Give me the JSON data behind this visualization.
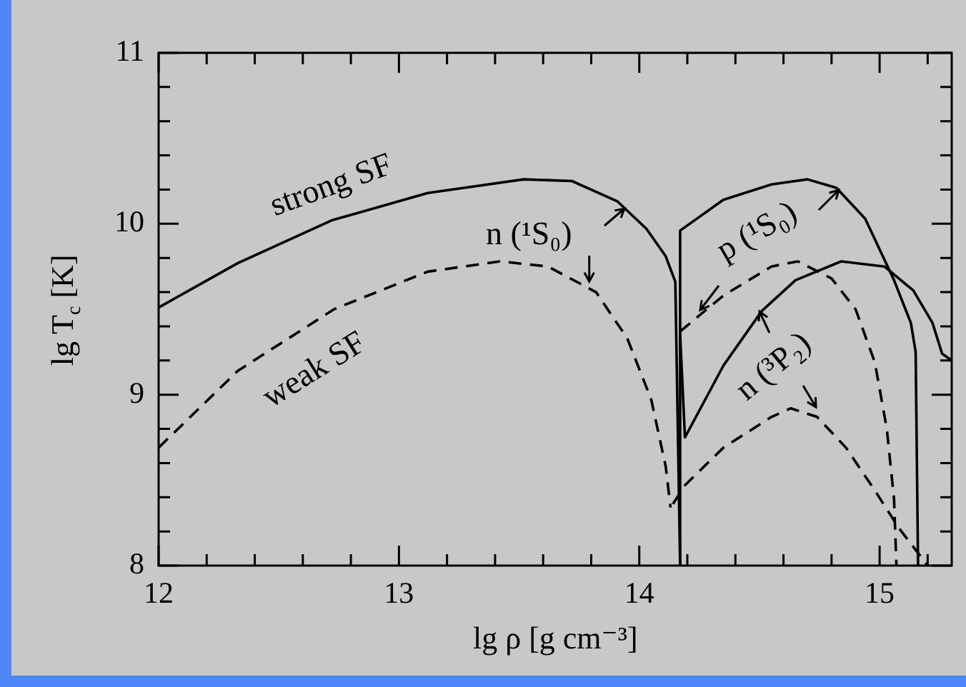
{
  "chart_data": {
    "type": "line",
    "xlabel": "lg ρ [g cm⁻³]",
    "ylabel": "lg T$_{c}$ [K]",
    "xlim": [
      12,
      15.3
    ],
    "ylim": [
      8,
      11
    ],
    "xticks": [
      12,
      {
        "value": 12.2,
        "label": null
      },
      {
        "value": 12.4,
        "label": null
      },
      {
        "value": 12.6,
        "label": null
      },
      {
        "value": 12.8,
        "label": null
      },
      13,
      {
        "value": 13.2,
        "label": null
      },
      {
        "value": 13.4,
        "label": null
      },
      {
        "value": 13.6,
        "label": null
      },
      {
        "value": 13.8,
        "label": null
      },
      14,
      {
        "value": 14.2,
        "label": null
      },
      {
        "value": 14.4,
        "label": null
      },
      {
        "value": 14.6,
        "label": null
      },
      {
        "value": 14.8,
        "label": null
      },
      15,
      {
        "value": 15.2,
        "label": null
      }
    ],
    "yticks": [
      8,
      {
        "value": 8.2,
        "label": null
      },
      {
        "value": 8.4,
        "label": null
      },
      {
        "value": 8.6,
        "label": null
      },
      {
        "value": 8.8,
        "label": null
      },
      9,
      {
        "value": 9.2,
        "label": null
      },
      {
        "value": 9.4,
        "label": null
      },
      {
        "value": 9.6,
        "label": null
      },
      {
        "value": 9.8,
        "label": null
      },
      10,
      {
        "value": 10.2,
        "label": null
      },
      {
        "value": 10.4,
        "label": null
      },
      {
        "value": 10.6,
        "label": null
      },
      {
        "value": 10.8,
        "label": null
      },
      11
    ],
    "grid": false,
    "legend": false,
    "marker": "none",
    "series": [
      {
        "color": "#000000",
        "line_style": "solid",
        "x": [
          12,
          12.33,
          12.72,
          13.12,
          13.52,
          13.72,
          13.91,
          14.03,
          14.11,
          14.15,
          14.17
        ],
        "values": [
          9.51,
          9.77,
          10.02,
          10.18,
          10.26,
          10.25,
          10.13,
          9.97,
          9.81,
          9.66,
          8
        ]
      },
      {
        "color": "#000000",
        "line_style": "dashed",
        "x": [
          12,
          12.33,
          12.73,
          13.12,
          13.42,
          13.62,
          13.82,
          13.95,
          14.05,
          14.11,
          14.13
        ],
        "values": [
          8.69,
          9.14,
          9.5,
          9.72,
          9.78,
          9.75,
          9.6,
          9.33,
          8.97,
          8.58,
          8.34
        ]
      },
      {
        "color": "#000000",
        "line_style": "solid",
        "x": [
          14.17,
          14.17,
          14.35,
          14.55,
          14.7,
          14.82,
          14.94,
          15.06,
          15.13,
          15.15,
          15.16
        ],
        "values": [
          8,
          9.96,
          10.14,
          10.23,
          10.26,
          10.21,
          10.03,
          9.67,
          9.42,
          9.25,
          8
        ]
      },
      {
        "color": "#000000",
        "line_style": "dashed",
        "x": [
          14.17,
          14.35,
          14.55,
          14.66,
          14.8,
          14.9,
          14.98,
          15.03,
          15.06,
          15.07
        ],
        "values": [
          9.37,
          9.58,
          9.75,
          9.78,
          9.68,
          9.5,
          9.19,
          8.8,
          8.39,
          8
        ]
      },
      {
        "color": "#000000",
        "line_style": "solid",
        "x": [
          14.17,
          14.19,
          14.35,
          14.51,
          14.65,
          14.84,
          15.02,
          15.14,
          15.22,
          15.26,
          15.3
        ],
        "values": [
          9.35,
          8.75,
          9.17,
          9.49,
          9.67,
          9.78,
          9.75,
          9.61,
          9.42,
          9.24,
          9.2
        ]
      },
      {
        "color": "#000000",
        "line_style": "dashed",
        "x": [
          14.14,
          14.19,
          14.35,
          14.55,
          14.63,
          14.74,
          14.86,
          14.98,
          15.08,
          15.2
        ],
        "values": [
          8.36,
          8.47,
          8.69,
          8.87,
          8.92,
          8.87,
          8.69,
          8.44,
          8.22,
          8
        ]
      }
    ],
    "annotations": [
      "strong SF",
      "weak SF",
      "n (¹S₀)",
      "p (¹S₀)",
      "n (³P₂)"
    ]
  }
}
